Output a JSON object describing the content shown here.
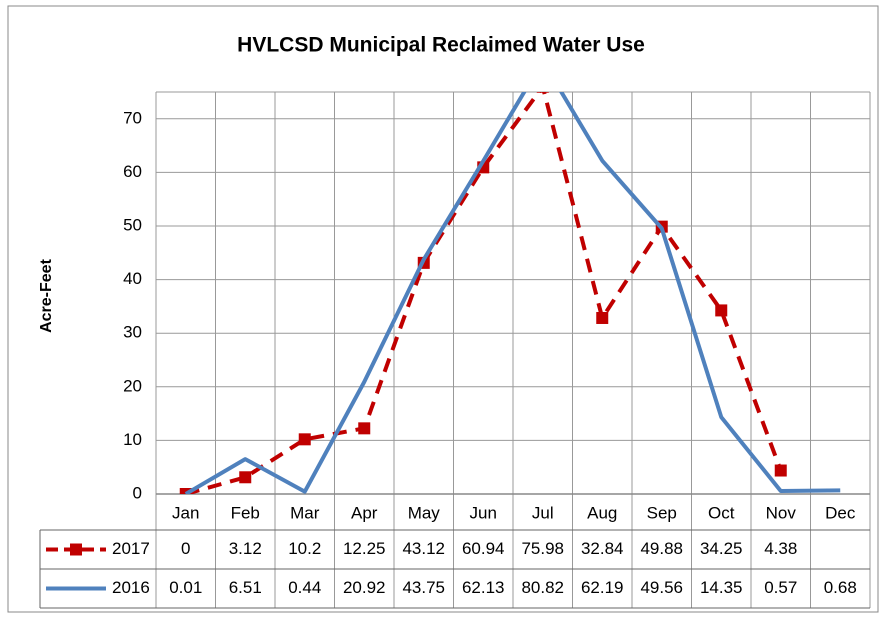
{
  "chart_data": {
    "type": "line",
    "title": "HVLCSD Municipal Reclaimed Water Use",
    "y_label": "Acre-Feet",
    "categories": [
      "Jan",
      "Feb",
      "Mar",
      "Apr",
      "May",
      "Jun",
      "Jul",
      "Aug",
      "Sep",
      "Oct",
      "Nov",
      "Dec"
    ],
    "series": [
      {
        "name": "2017",
        "color": "#c00000",
        "dashed": true,
        "marker": "square",
        "values": [
          0,
          3.12,
          10.2,
          12.25,
          43.12,
          60.94,
          75.98,
          32.84,
          49.88,
          34.25,
          4.38,
          null
        ]
      },
      {
        "name": "2016",
        "color": "#4f81bd",
        "dashed": false,
        "marker": null,
        "values": [
          0.01,
          6.51,
          0.44,
          20.92,
          43.75,
          62.13,
          80.82,
          62.19,
          49.56,
          14.35,
          0.57,
          0.68
        ]
      }
    ],
    "ylim": [
      0,
      75
    ],
    "yticks": [
      0,
      10,
      20,
      30,
      40,
      50,
      60,
      70
    ],
    "grid": true,
    "data_table": true
  }
}
